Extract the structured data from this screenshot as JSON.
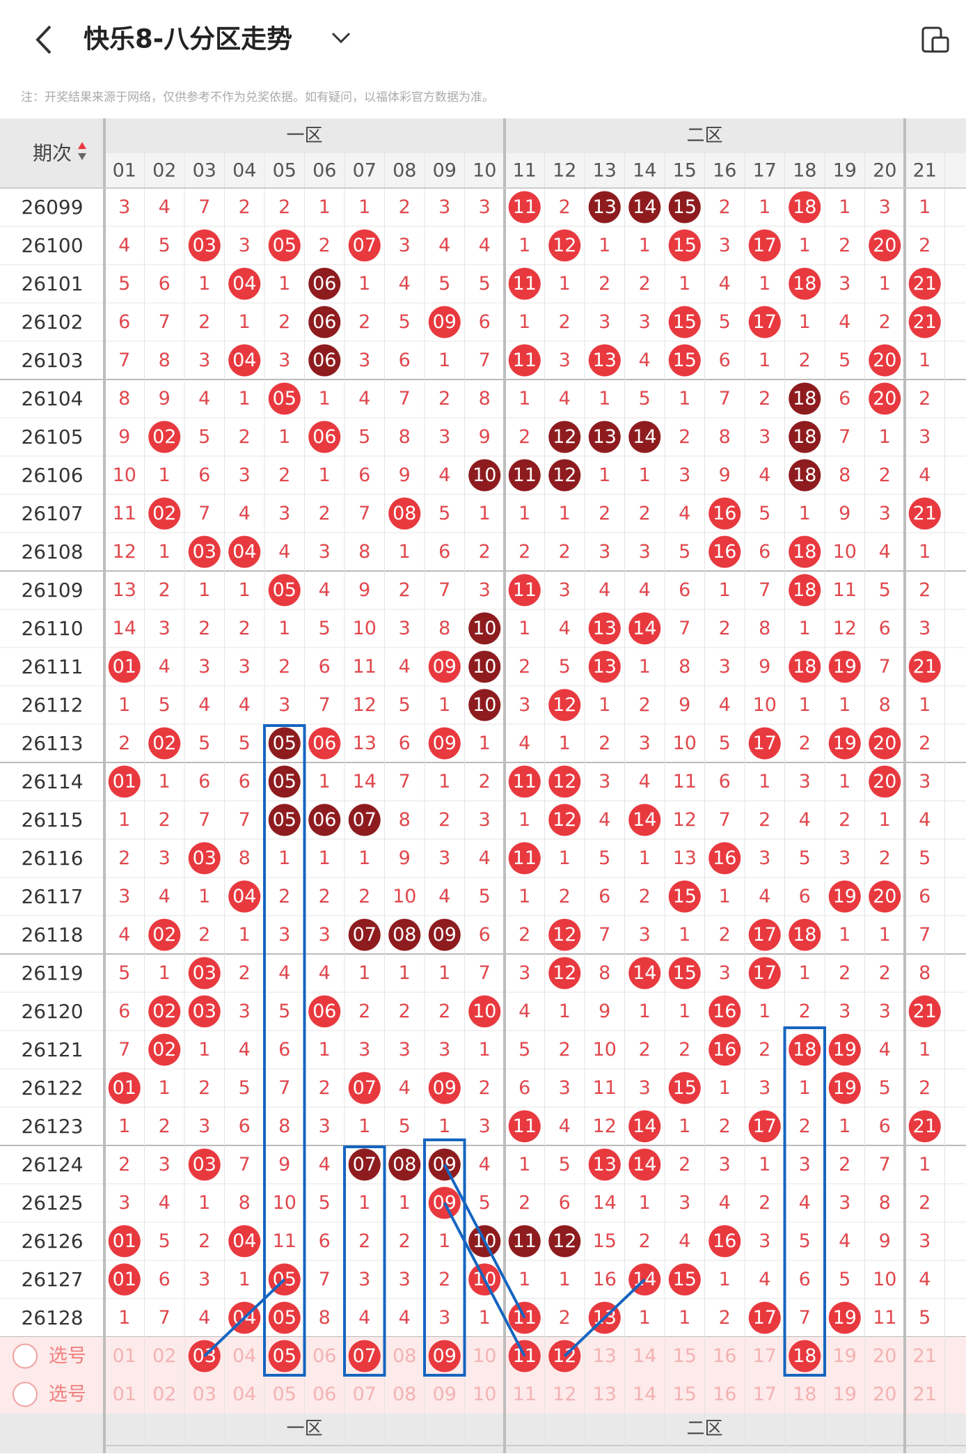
{
  "header": {
    "title": "快乐8-八分区走势"
  },
  "note": "注：开奖结果来源于网络，仅供参考不作为兑奖依据。如有疑问，以福体彩官方数据为准。",
  "table": {
    "period_label": "期次",
    "zones": [
      "一区",
      "二区"
    ],
    "columns": [
      "01",
      "02",
      "03",
      "04",
      "05",
      "06",
      "07",
      "08",
      "09",
      "10",
      "11",
      "12",
      "13",
      "14",
      "15",
      "16",
      "17",
      "18",
      "19",
      "20",
      "21"
    ],
    "rows": [
      {
        "period": "26099",
        "cells": [
          "3",
          "4",
          "7",
          "2",
          "2",
          "1",
          "1",
          "2",
          "3",
          "3",
          "11",
          "2",
          "13",
          "14",
          "15",
          "2",
          "1",
          "18",
          "1",
          "3",
          "1"
        ]
      },
      {
        "period": "26100",
        "cells": [
          "4",
          "5",
          "03",
          "3",
          "05",
          "2",
          "07",
          "3",
          "4",
          "4",
          "1",
          "12",
          "1",
          "1",
          "15",
          "3",
          "17",
          "1",
          "2",
          "20",
          "2"
        ]
      },
      {
        "period": "26101",
        "cells": [
          "5",
          "6",
          "1",
          "04",
          "1",
          "06",
          "1",
          "4",
          "5",
          "5",
          "11",
          "1",
          "2",
          "2",
          "1",
          "4",
          "1",
          "18",
          "3",
          "1",
          "21"
        ]
      },
      {
        "period": "26102",
        "cells": [
          "6",
          "7",
          "2",
          "1",
          "2",
          "06",
          "2",
          "5",
          "09",
          "6",
          "1",
          "2",
          "3",
          "3",
          "15",
          "5",
          "17",
          "1",
          "4",
          "2",
          "21"
        ]
      },
      {
        "period": "26103",
        "cells": [
          "7",
          "8",
          "3",
          "04",
          "3",
          "06",
          "3",
          "6",
          "1",
          "7",
          "11",
          "3",
          "13",
          "4",
          "15",
          "6",
          "1",
          "2",
          "5",
          "20",
          "1"
        ]
      },
      {
        "period": "26104",
        "cells": [
          "8",
          "9",
          "4",
          "1",
          "05",
          "1",
          "4",
          "7",
          "2",
          "8",
          "1",
          "4",
          "1",
          "5",
          "1",
          "7",
          "2",
          "18",
          "6",
          "20",
          "2"
        ]
      },
      {
        "period": "26105",
        "cells": [
          "9",
          "02",
          "5",
          "2",
          "1",
          "06",
          "5",
          "8",
          "3",
          "9",
          "2",
          "12",
          "13",
          "14",
          "2",
          "8",
          "3",
          "18",
          "7",
          "1",
          "3"
        ]
      },
      {
        "period": "26106",
        "cells": [
          "10",
          "1",
          "6",
          "3",
          "2",
          "1",
          "6",
          "9",
          "4",
          "10",
          "11",
          "12",
          "1",
          "1",
          "3",
          "9",
          "4",
          "18",
          "8",
          "2",
          "4"
        ]
      },
      {
        "period": "26107",
        "cells": [
          "11",
          "02",
          "7",
          "4",
          "3",
          "2",
          "7",
          "08",
          "5",
          "1",
          "1",
          "1",
          "2",
          "2",
          "4",
          "16",
          "5",
          "1",
          "9",
          "3",
          "21"
        ]
      },
      {
        "period": "26108",
        "cells": [
          "12",
          "1",
          "03",
          "04",
          "4",
          "3",
          "8",
          "1",
          "6",
          "2",
          "2",
          "2",
          "3",
          "3",
          "5",
          "16",
          "6",
          "18",
          "10",
          "4",
          "1"
        ]
      },
      {
        "period": "26109",
        "cells": [
          "13",
          "2",
          "1",
          "1",
          "05",
          "4",
          "9",
          "2",
          "7",
          "3",
          "11",
          "3",
          "4",
          "4",
          "6",
          "1",
          "7",
          "18",
          "11",
          "5",
          "2"
        ]
      },
      {
        "period": "26110",
        "cells": [
          "14",
          "3",
          "2",
          "2",
          "1",
          "5",
          "10",
          "3",
          "8",
          "10",
          "1",
          "4",
          "13",
          "14",
          "7",
          "2",
          "8",
          "1",
          "12",
          "6",
          "3"
        ]
      },
      {
        "period": "26111",
        "cells": [
          "01",
          "4",
          "3",
          "3",
          "2",
          "6",
          "11",
          "4",
          "09",
          "10",
          "2",
          "5",
          "13",
          "1",
          "8",
          "3",
          "9",
          "18",
          "19",
          "7",
          "21"
        ]
      },
      {
        "period": "26112",
        "cells": [
          "1",
          "5",
          "4",
          "4",
          "3",
          "7",
          "12",
          "5",
          "1",
          "10",
          "3",
          "12",
          "1",
          "2",
          "9",
          "4",
          "10",
          "1",
          "1",
          "8",
          "1"
        ]
      },
      {
        "period": "26113",
        "cells": [
          "2",
          "02",
          "5",
          "5",
          "05",
          "06",
          "13",
          "6",
          "09",
          "1",
          "4",
          "1",
          "2",
          "3",
          "10",
          "5",
          "17",
          "2",
          "19",
          "20",
          "2"
        ]
      },
      {
        "period": "26114",
        "cells": [
          "01",
          "1",
          "6",
          "6",
          "05",
          "1",
          "14",
          "7",
          "1",
          "2",
          "11",
          "12",
          "3",
          "4",
          "11",
          "6",
          "1",
          "3",
          "1",
          "20",
          "3"
        ]
      },
      {
        "period": "26115",
        "cells": [
          "1",
          "2",
          "7",
          "7",
          "05",
          "06",
          "07",
          "8",
          "2",
          "3",
          "1",
          "12",
          "4",
          "14",
          "12",
          "7",
          "2",
          "4",
          "2",
          "1",
          "4"
        ]
      },
      {
        "period": "26116",
        "cells": [
          "2",
          "3",
          "03",
          "8",
          "1",
          "1",
          "1",
          "9",
          "3",
          "4",
          "11",
          "1",
          "5",
          "1",
          "13",
          "16",
          "3",
          "5",
          "3",
          "2",
          "5"
        ]
      },
      {
        "period": "26117",
        "cells": [
          "3",
          "4",
          "1",
          "04",
          "2",
          "2",
          "2",
          "10",
          "4",
          "5",
          "1",
          "2",
          "6",
          "2",
          "15",
          "1",
          "4",
          "6",
          "19",
          "20",
          "6"
        ]
      },
      {
        "period": "26118",
        "cells": [
          "4",
          "02",
          "2",
          "1",
          "3",
          "3",
          "07",
          "08",
          "09",
          "6",
          "2",
          "12",
          "7",
          "3",
          "1",
          "2",
          "17",
          "18",
          "1",
          "1",
          "7"
        ]
      },
      {
        "period": "26119",
        "cells": [
          "5",
          "1",
          "03",
          "2",
          "4",
          "4",
          "1",
          "1",
          "1",
          "7",
          "3",
          "12",
          "8",
          "14",
          "15",
          "3",
          "17",
          "1",
          "2",
          "2",
          "8"
        ]
      },
      {
        "period": "26120",
        "cells": [
          "6",
          "02",
          "03",
          "3",
          "5",
          "06",
          "2",
          "2",
          "2",
          "10",
          "4",
          "1",
          "9",
          "1",
          "1",
          "16",
          "1",
          "2",
          "3",
          "3",
          "21"
        ]
      },
      {
        "period": "26121",
        "cells": [
          "7",
          "02",
          "1",
          "4",
          "6",
          "1",
          "3",
          "3",
          "3",
          "1",
          "5",
          "2",
          "10",
          "2",
          "2",
          "16",
          "2",
          "18",
          "19",
          "4",
          "1"
        ]
      },
      {
        "period": "26122",
        "cells": [
          "01",
          "1",
          "2",
          "5",
          "7",
          "2",
          "07",
          "4",
          "09",
          "2",
          "6",
          "3",
          "11",
          "3",
          "15",
          "1",
          "3",
          "1",
          "19",
          "5",
          "2"
        ]
      },
      {
        "period": "26123",
        "cells": [
          "1",
          "2",
          "3",
          "6",
          "8",
          "3",
          "1",
          "5",
          "1",
          "3",
          "11",
          "4",
          "12",
          "14",
          "1",
          "2",
          "17",
          "2",
          "1",
          "6",
          "21"
        ]
      },
      {
        "period": "26124",
        "cells": [
          "2",
          "3",
          "03",
          "7",
          "9",
          "4",
          "07",
          "08",
          "09",
          "4",
          "1",
          "5",
          "13",
          "14",
          "2",
          "3",
          "1",
          "3",
          "2",
          "7",
          "1"
        ]
      },
      {
        "period": "26125",
        "cells": [
          "3",
          "4",
          "1",
          "8",
          "10",
          "5",
          "1",
          "1",
          "09",
          "5",
          "2",
          "6",
          "14",
          "1",
          "3",
          "4",
          "2",
          "4",
          "3",
          "8",
          "2"
        ]
      },
      {
        "period": "26126",
        "cells": [
          "01",
          "5",
          "2",
          "04",
          "11",
          "6",
          "2",
          "2",
          "1",
          "10",
          "11",
          "12",
          "15",
          "2",
          "4",
          "16",
          "3",
          "5",
          "4",
          "9",
          "3"
        ]
      },
      {
        "period": "26127",
        "cells": [
          "01",
          "6",
          "3",
          "1",
          "05",
          "7",
          "3",
          "3",
          "2",
          "10",
          "1",
          "1",
          "16",
          "14",
          "15",
          "1",
          "4",
          "6",
          "5",
          "10",
          "4"
        ]
      },
      {
        "period": "26128",
        "cells": [
          "1",
          "7",
          "4",
          "04",
          "05",
          "8",
          "4",
          "4",
          "3",
          "1",
          "11",
          "2",
          "13",
          "1",
          "1",
          "2",
          "17",
          "7",
          "19",
          "11",
          "5"
        ]
      }
    ],
    "select_rows": [
      {
        "label": "选号",
        "selected": [
          false,
          false,
          true,
          false,
          true,
          false,
          true,
          false,
          true,
          false,
          true,
          true,
          false,
          false,
          false,
          false,
          false,
          true,
          false,
          false,
          false
        ]
      },
      {
        "label": "选号",
        "selected": [
          false,
          false,
          false,
          false,
          false,
          false,
          false,
          false,
          false,
          false,
          false,
          false,
          false,
          false,
          false,
          false,
          false,
          false,
          false,
          false,
          false
        ]
      }
    ]
  }
}
